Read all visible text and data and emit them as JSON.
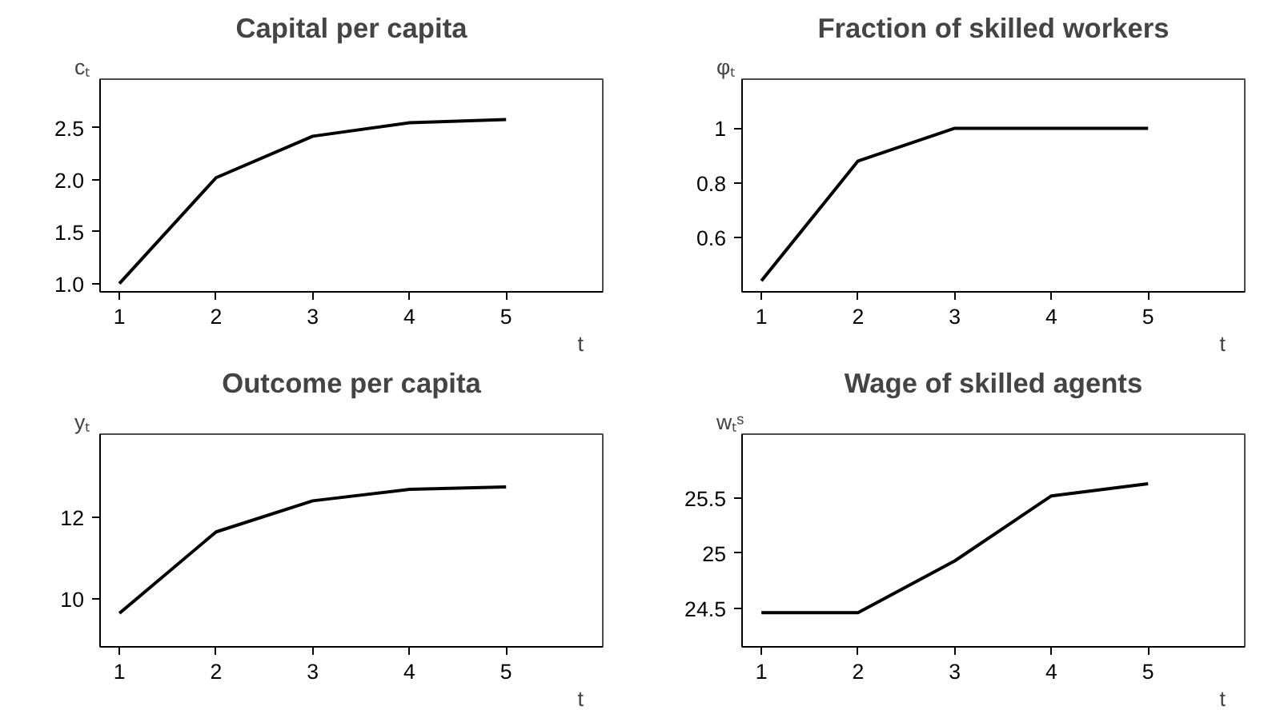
{
  "chart_data": [
    {
      "type": "line",
      "title": "Capital per capita",
      "ylabel": "cₜ",
      "xlabel": "t",
      "x": [
        1,
        2,
        3,
        4,
        5
      ],
      "values": [
        1.0,
        2.02,
        2.42,
        2.55,
        2.58
      ],
      "color": "#000000",
      "xlim": [
        0.8,
        6.0
      ],
      "xticks": [
        1,
        2,
        3,
        4,
        5
      ],
      "ylim": [
        0.92,
        2.97
      ],
      "yticks": [
        {
          "value": 1,
          "label": "1.0"
        },
        1.5,
        {
          "value": 2,
          "label": "2.0"
        },
        2.5
      ],
      "grid": false,
      "marker": "none",
      "line_style": "solid"
    },
    {
      "type": "line",
      "title": "Fraction of skilled workers",
      "ylabel": "φₜ",
      "xlabel": "t",
      "x": [
        1,
        2,
        3,
        4,
        5
      ],
      "values": [
        0.44,
        0.88,
        1.0,
        1.0,
        1.0
      ],
      "color": "#000000",
      "xlim": [
        0.8,
        6.0
      ],
      "xticks": [
        1,
        2,
        3,
        4,
        5
      ],
      "ylim": [
        0.4,
        1.18
      ],
      "yticks": [
        0.6,
        0.8,
        1
      ],
      "grid": false,
      "marker": "none",
      "line_style": "solid"
    },
    {
      "type": "line",
      "title": "Outcome per capita",
      "ylabel": "yₜ",
      "xlabel": "t",
      "x": [
        1,
        2,
        3,
        4,
        5
      ],
      "values": [
        9.65,
        11.64,
        12.4,
        12.68,
        12.74
      ],
      "color": "#000000",
      "xlim": [
        0.8,
        6.0
      ],
      "xticks": [
        1,
        2,
        3,
        4,
        5
      ],
      "ylim": [
        8.83,
        14.03
      ],
      "yticks": [
        10,
        12
      ],
      "grid": false,
      "marker": "none",
      "line_style": "solid"
    },
    {
      "type": "line",
      "title": "Wage of skilled agents",
      "ylabel": "wₜˢ",
      "xlabel": "t",
      "x": [
        1,
        2,
        3,
        4,
        5
      ],
      "values": [
        24.46,
        24.46,
        24.93,
        25.52,
        25.63
      ],
      "color": "#000000",
      "xlim": [
        0.8,
        6.0
      ],
      "xticks": [
        1,
        2,
        3,
        4,
        5
      ],
      "ylim": [
        24.15,
        26.08
      ],
      "yticks": [
        24.5,
        25,
        25.5
      ],
      "grid": false,
      "marker": "none",
      "line_style": "solid"
    }
  ]
}
